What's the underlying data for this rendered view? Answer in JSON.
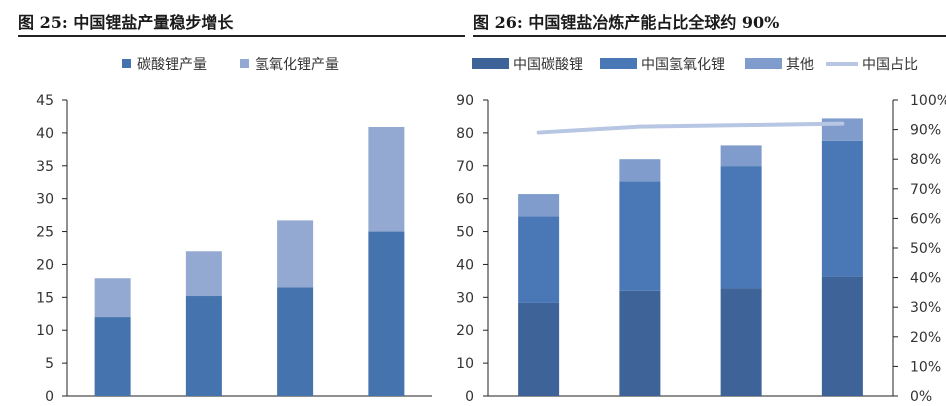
{
  "colors": {
    "lithium_carbonate": "#4573ad",
    "lithium_hydroxide_left": "#93a9d1",
    "china_carbonate": "#3e6398",
    "china_hydroxide": "#4a78b6",
    "other": "#7f9ccd",
    "share_line": "#b7c6e2",
    "axis": "#222222",
    "text": "#333333"
  },
  "left_figure": {
    "title": "图 25:  中国锂盐产量稳步增长"
  },
  "right_figure": {
    "title": "图 26:  中国锂盐冶炼产能占比全球约 90%"
  },
  "chart_data": [
    {
      "type": "bar",
      "stacked": true,
      "title": "图 25:  中国锂盐产量稳步增长",
      "categories": [
        "",
        "",
        "",
        ""
      ],
      "series": [
        {
          "name": "碳酸锂产量",
          "values": [
            12.0,
            15.2,
            16.5,
            25.0
          ],
          "color": "#4573ad"
        },
        {
          "name": "氢氧化锂产量",
          "values": [
            5.9,
            6.8,
            10.2,
            15.9
          ],
          "color": "#93a9d1"
        }
      ],
      "ylim": [
        0,
        45
      ],
      "yticks": [
        "0",
        "5",
        "10",
        "15",
        "20",
        "25",
        "30",
        "35",
        "40",
        "45"
      ],
      "ytick_values": [
        0,
        5,
        10,
        15,
        20,
        25,
        30,
        35,
        40,
        45
      ],
      "legend_position": "top-center",
      "grid": false
    },
    {
      "type": "bar",
      "stacked": true,
      "title": "图 26:  中国锂盐冶炼产能占比全球约 90%",
      "categories": [
        "",
        "",
        "",
        ""
      ],
      "series": [
        {
          "name": "中国碳酸锂",
          "values": [
            28.3,
            32.0,
            32.8,
            36.3
          ],
          "color": "#3e6398"
        },
        {
          "name": "中国氢氧化锂",
          "values": [
            26.3,
            33.2,
            37.1,
            41.3
          ],
          "color": "#4a78b6"
        },
        {
          "name": "其他",
          "values": [
            6.8,
            6.8,
            6.3,
            6.8
          ],
          "color": "#7f9ccd"
        }
      ],
      "line_series": {
        "name": "中国占比",
        "axis": "right",
        "values": [
          0.89,
          0.91,
          0.915,
          0.92
        ],
        "color": "#b7c6e2"
      },
      "ylim": [
        0,
        90
      ],
      "yticks": [
        "0",
        "10",
        "20",
        "30",
        "40",
        "50",
        "60",
        "70",
        "80",
        "90"
      ],
      "ytick_values": [
        0,
        10,
        20,
        30,
        40,
        50,
        60,
        70,
        80,
        90
      ],
      "y2lim": [
        0,
        1
      ],
      "y2ticks": [
        "0%",
        "10%",
        "20%",
        "30%",
        "40%",
        "50%",
        "60%",
        "70%",
        "80%",
        "90%",
        "100%"
      ],
      "y2tick_values": [
        0,
        0.1,
        0.2,
        0.3,
        0.4,
        0.5,
        0.6,
        0.7,
        0.8,
        0.9,
        1.0
      ],
      "legend_position": "top",
      "grid": false
    }
  ]
}
